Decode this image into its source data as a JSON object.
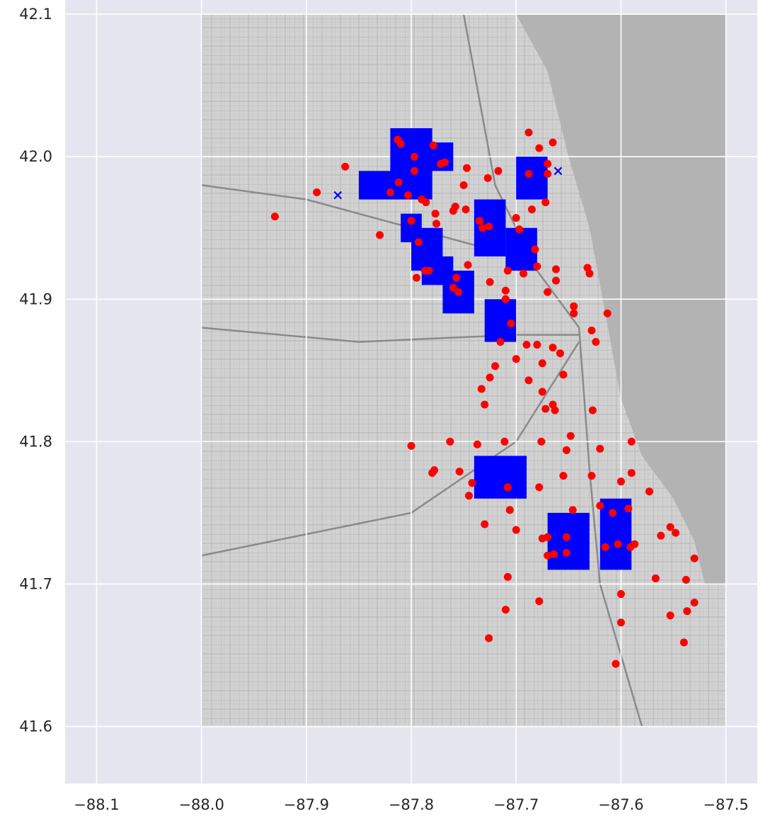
{
  "chart_data": {
    "type": "scatter",
    "title": "",
    "xlabel": "",
    "ylabel": "",
    "xlim": [
      -88.13,
      -87.47
    ],
    "ylim": [
      41.56,
      42.11
    ],
    "xticks": [
      -88.1,
      -88.0,
      -87.9,
      -87.8,
      -87.7,
      -87.6,
      -87.5
    ],
    "xtick_labels": [
      "−88.1",
      "−88.0",
      "−87.9",
      "−87.8",
      "−87.7",
      "−87.6",
      "−87.5"
    ],
    "yticks": [
      41.6,
      41.7,
      41.8,
      41.9,
      42.0,
      42.1
    ],
    "ytick_labels": [
      "41.6",
      "41.7",
      "41.8",
      "41.9",
      "42.0",
      "42.1"
    ],
    "grid": true,
    "background_map": {
      "x_extent": [
        -88.0,
        -87.5
      ],
      "y_extent": [
        41.6,
        42.1
      ],
      "description": "grayscale street map of Chicago"
    },
    "colors": {
      "axes_bg": "#e5e5f0",
      "grid": "#ffffff",
      "map_land": "#d4d4d4",
      "map_water": "#b3b3b3",
      "blue_series": "#0000ff",
      "red_series": "#ff0000"
    },
    "series": [
      {
        "marker": "x",
        "color": "#0000ff",
        "regions": [
          {
            "x0": -87.82,
            "x1": -87.78,
            "y0": 41.97,
            "y1": 42.02
          },
          {
            "x0": -87.85,
            "x1": -87.8,
            "y0": 41.97,
            "y1": 41.99
          },
          {
            "x0": -87.79,
            "x1": -87.76,
            "y0": 41.99,
            "y1": 42.01
          },
          {
            "x0": -87.8,
            "x1": -87.77,
            "y0": 41.92,
            "y1": 41.95
          },
          {
            "x0": -87.81,
            "x1": -87.79,
            "y0": 41.94,
            "y1": 41.96
          },
          {
            "x0": -87.79,
            "x1": -87.76,
            "y0": 41.91,
            "y1": 41.93
          },
          {
            "x0": -87.77,
            "x1": -87.74,
            "y0": 41.89,
            "y1": 41.92
          },
          {
            "x0": -87.74,
            "x1": -87.71,
            "y0": 41.93,
            "y1": 41.97
          },
          {
            "x0": -87.71,
            "x1": -87.68,
            "y0": 41.92,
            "y1": 41.95
          },
          {
            "x0": -87.7,
            "x1": -87.67,
            "y0": 41.97,
            "y1": 42.0
          },
          {
            "x0": -87.73,
            "x1": -87.7,
            "y0": 41.87,
            "y1": 41.9
          },
          {
            "x0": -87.74,
            "x1": -87.69,
            "y0": 41.76,
            "y1": 41.79
          },
          {
            "x0": -87.67,
            "x1": -87.63,
            "y0": 41.71,
            "y1": 41.75
          },
          {
            "x0": -87.62,
            "x1": -87.59,
            "y0": 41.71,
            "y1": 41.76
          }
        ],
        "points": [
          [
            -87.87,
            41.973
          ],
          [
            -87.66,
            41.99
          ]
        ]
      },
      {
        "marker": "o",
        "color": "#ff0000",
        "points": [
          [
            -87.93,
            41.958
          ],
          [
            -87.89,
            41.975
          ],
          [
            -87.863,
            41.993
          ],
          [
            -87.83,
            41.945
          ],
          [
            -87.813,
            42.012
          ],
          [
            -87.81,
            42.009
          ],
          [
            -87.82,
            41.975
          ],
          [
            -87.812,
            41.982
          ],
          [
            -87.803,
            41.973
          ],
          [
            -87.8,
            41.955
          ],
          [
            -87.797,
            41.99
          ],
          [
            -87.797,
            42.0
          ],
          [
            -87.793,
            41.94
          ],
          [
            -87.79,
            41.97
          ],
          [
            -87.786,
            41.968
          ],
          [
            -87.783,
            41.92
          ],
          [
            -87.779,
            42.008
          ],
          [
            -87.777,
            41.96
          ],
          [
            -87.776,
            41.953
          ],
          [
            -87.772,
            41.995
          ],
          [
            -87.768,
            41.996
          ],
          [
            -87.76,
            41.962
          ],
          [
            -87.758,
            41.965
          ],
          [
            -87.757,
            41.915
          ],
          [
            -87.755,
            41.905
          ],
          [
            -87.75,
            41.98
          ],
          [
            -87.748,
            41.963
          ],
          [
            -87.747,
            41.992
          ],
          [
            -87.746,
            41.924
          ],
          [
            -87.735,
            41.955
          ],
          [
            -87.732,
            41.95
          ],
          [
            -87.727,
            41.985
          ],
          [
            -87.726,
            41.951
          ],
          [
            -87.717,
            41.99
          ],
          [
            -87.708,
            41.92
          ],
          [
            -87.7,
            41.957
          ],
          [
            -87.697,
            41.949
          ],
          [
            -87.693,
            41.918
          ],
          [
            -87.688,
            41.988
          ],
          [
            -87.688,
            42.017
          ],
          [
            -87.685,
            41.963
          ],
          [
            -87.682,
            41.935
          ],
          [
            -87.68,
            41.923
          ],
          [
            -87.678,
            42.006
          ],
          [
            -87.672,
            41.968
          ],
          [
            -87.67,
            41.995
          ],
          [
            -87.67,
            41.988
          ],
          [
            -87.665,
            42.01
          ],
          [
            -87.662,
            41.913
          ],
          [
            -87.662,
            41.921
          ],
          [
            -87.67,
            41.905
          ],
          [
            -87.71,
            41.906
          ],
          [
            -87.725,
            41.912
          ],
          [
            -87.76,
            41.908
          ],
          [
            -87.787,
            41.92
          ],
          [
            -87.795,
            41.915
          ],
          [
            -87.71,
            41.9
          ],
          [
            -87.705,
            41.883
          ],
          [
            -87.715,
            41.87
          ],
          [
            -87.69,
            41.868
          ],
          [
            -87.68,
            41.868
          ],
          [
            -87.675,
            41.855
          ],
          [
            -87.665,
            41.866
          ],
          [
            -87.658,
            41.862
          ],
          [
            -87.655,
            41.847
          ],
          [
            -87.645,
            41.895
          ],
          [
            -87.645,
            41.89
          ],
          [
            -87.632,
            41.922
          ],
          [
            -87.63,
            41.918
          ],
          [
            -87.628,
            41.878
          ],
          [
            -87.624,
            41.87
          ],
          [
            -87.613,
            41.89
          ],
          [
            -87.7,
            41.858
          ],
          [
            -87.72,
            41.853
          ],
          [
            -87.725,
            41.845
          ],
          [
            -87.733,
            41.837
          ],
          [
            -87.73,
            41.826
          ],
          [
            -87.688,
            41.843
          ],
          [
            -87.675,
            41.835
          ],
          [
            -87.672,
            41.823
          ],
          [
            -87.665,
            41.826
          ],
          [
            -87.663,
            41.822
          ],
          [
            -87.648,
            41.804
          ],
          [
            -87.627,
            41.822
          ],
          [
            -87.8,
            41.797
          ],
          [
            -87.763,
            41.8
          ],
          [
            -87.737,
            41.798
          ],
          [
            -87.711,
            41.8
          ],
          [
            -87.676,
            41.8
          ],
          [
            -87.652,
            41.794
          ],
          [
            -87.62,
            41.795
          ],
          [
            -87.59,
            41.8
          ],
          [
            -87.78,
            41.778
          ],
          [
            -87.778,
            41.78
          ],
          [
            -87.754,
            41.779
          ],
          [
            -87.745,
            41.762
          ],
          [
            -87.742,
            41.771
          ],
          [
            -87.73,
            41.742
          ],
          [
            -87.708,
            41.768
          ],
          [
            -87.706,
            41.752
          ],
          [
            -87.7,
            41.738
          ],
          [
            -87.678,
            41.768
          ],
          [
            -87.675,
            41.732
          ],
          [
            -87.67,
            41.72
          ],
          [
            -87.664,
            41.721
          ],
          [
            -87.655,
            41.776
          ],
          [
            -87.646,
            41.752
          ],
          [
            -87.628,
            41.776
          ],
          [
            -87.62,
            41.755
          ],
          [
            -87.615,
            41.726
          ],
          [
            -87.608,
            41.75
          ],
          [
            -87.603,
            41.728
          ],
          [
            -87.6,
            41.772
          ],
          [
            -87.593,
            41.753
          ],
          [
            -87.591,
            41.726
          ],
          [
            -87.587,
            41.728
          ],
          [
            -87.573,
            41.765
          ],
          [
            -87.562,
            41.734
          ],
          [
            -87.553,
            41.74
          ],
          [
            -87.548,
            41.736
          ],
          [
            -87.59,
            41.778
          ],
          [
            -87.67,
            41.733
          ],
          [
            -87.652,
            41.722
          ],
          [
            -87.652,
            41.733
          ],
          [
            -87.708,
            41.705
          ],
          [
            -87.678,
            41.688
          ],
          [
            -87.71,
            41.682
          ],
          [
            -87.726,
            41.662
          ],
          [
            -87.6,
            41.693
          ],
          [
            -87.6,
            41.673
          ],
          [
            -87.605,
            41.644
          ],
          [
            -87.553,
            41.678
          ],
          [
            -87.54,
            41.659
          ],
          [
            -87.538,
            41.703
          ],
          [
            -87.537,
            41.681
          ],
          [
            -87.53,
            41.687
          ],
          [
            -87.53,
            41.718
          ],
          [
            -87.567,
            41.704
          ]
        ]
      }
    ]
  }
}
